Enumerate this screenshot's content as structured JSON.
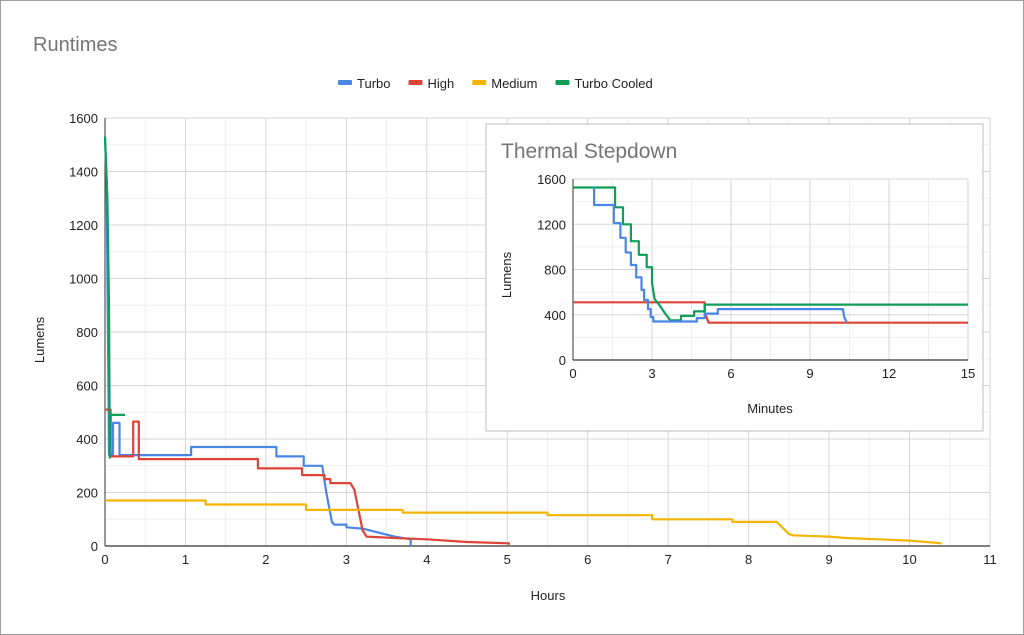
{
  "chart_data": [
    {
      "type": "line",
      "title": "Runtimes",
      "xlabel": "Hours",
      "ylabel": "Lumens",
      "xlim": [
        0,
        11
      ],
      "ylim": [
        0,
        1600
      ],
      "xticks": [
        0,
        1,
        2,
        3,
        4,
        5,
        6,
        7,
        8,
        9,
        10,
        11
      ],
      "yticks": [
        0,
        200,
        400,
        600,
        800,
        1000,
        1200,
        1400,
        1600
      ],
      "grid": true,
      "legend_position": "top",
      "series": [
        {
          "name": "Turbo",
          "color": "#4a86e8",
          "points": [
            [
              0,
              1530
            ],
            [
              0.02,
              1360
            ],
            [
              0.05,
              340
            ],
            [
              0.1,
              340
            ],
            [
              0.1,
              460
            ],
            [
              0.18,
              460
            ],
            [
              0.18,
              340
            ],
            [
              1.07,
              340
            ],
            [
              1.07,
              370
            ],
            [
              2.13,
              370
            ],
            [
              2.13,
              335
            ],
            [
              2.47,
              335
            ],
            [
              2.47,
              300
            ],
            [
              2.7,
              300
            ],
            [
              2.75,
              200
            ],
            [
              2.82,
              90
            ],
            [
              2.85,
              80
            ],
            [
              3.0,
              80
            ],
            [
              3.0,
              70
            ],
            [
              3.2,
              65
            ],
            [
              3.4,
              50
            ],
            [
              3.6,
              35
            ],
            [
              3.8,
              25
            ],
            [
              3.8,
              0
            ]
          ]
        },
        {
          "name": "High",
          "color": "#db4437",
          "points": [
            [
              0,
              510
            ],
            [
              0.07,
              510
            ],
            [
              0.07,
              335
            ],
            [
              0.35,
              335
            ],
            [
              0.35,
              465
            ],
            [
              0.42,
              465
            ],
            [
              0.42,
              325
            ],
            [
              1.9,
              325
            ],
            [
              1.9,
              290
            ],
            [
              2.45,
              290
            ],
            [
              2.45,
              265
            ],
            [
              2.73,
              265
            ],
            [
              2.73,
              250
            ],
            [
              2.8,
              250
            ],
            [
              2.8,
              235
            ],
            [
              3.05,
              235
            ],
            [
              3.1,
              210
            ],
            [
              3.2,
              60
            ],
            [
              3.25,
              35
            ],
            [
              3.6,
              30
            ],
            [
              4.0,
              25
            ],
            [
              4.5,
              15
            ],
            [
              5.02,
              10
            ],
            [
              5.02,
              5
            ]
          ]
        },
        {
          "name": "Medium",
          "color": "#f4b400",
          "points": [
            [
              0,
              170
            ],
            [
              1.25,
              170
            ],
            [
              1.25,
              155
            ],
            [
              2.5,
              155
            ],
            [
              2.5,
              135
            ],
            [
              3.7,
              135
            ],
            [
              3.7,
              125
            ],
            [
              5.5,
              125
            ],
            [
              5.5,
              115
            ],
            [
              6.8,
              115
            ],
            [
              6.8,
              100
            ],
            [
              7.8,
              100
            ],
            [
              7.8,
              90
            ],
            [
              8.35,
              90
            ],
            [
              8.4,
              75
            ],
            [
              8.5,
              45
            ],
            [
              8.55,
              40
            ],
            [
              9.0,
              35
            ],
            [
              9.2,
              30
            ],
            [
              9.6,
              25
            ],
            [
              10.0,
              20
            ],
            [
              10.4,
              10
            ]
          ]
        },
        {
          "name": "Turbo Cooled",
          "color": "#0f9d58",
          "points": [
            [
              0,
              1530
            ],
            [
              0.03,
              1300
            ],
            [
              0.05,
              900
            ],
            [
              0.06,
              330
            ],
            [
              0.07,
              490
            ],
            [
              0.25,
              490
            ]
          ]
        }
      ]
    },
    {
      "type": "line",
      "title": "Thermal Stepdown",
      "xlabel": "Minutes",
      "ylabel": "Lumens",
      "xlim": [
        0,
        15
      ],
      "ylim": [
        0,
        1600
      ],
      "xticks": [
        0,
        3,
        6,
        9,
        12,
        15
      ],
      "yticks": [
        0,
        400,
        800,
        1200,
        1600
      ],
      "grid": true,
      "series": [
        {
          "name": "High",
          "color": "#db4437",
          "points": [
            [
              0,
              510
            ],
            [
              5.0,
              510
            ],
            [
              5.0,
              420
            ],
            [
              5.15,
              330
            ],
            [
              15,
              330
            ]
          ]
        },
        {
          "name": "Turbo Cooled",
          "color": "#0f9d58",
          "points": [
            [
              0,
              1525
            ],
            [
              1.6,
              1525
            ],
            [
              1.6,
              1350
            ],
            [
              1.9,
              1350
            ],
            [
              1.9,
              1200
            ],
            [
              2.2,
              1200
            ],
            [
              2.2,
              1050
            ],
            [
              2.5,
              1050
            ],
            [
              2.5,
              930
            ],
            [
              2.8,
              930
            ],
            [
              2.8,
              820
            ],
            [
              3.0,
              820
            ],
            [
              3.0,
              680
            ],
            [
              3.1,
              540
            ],
            [
              3.3,
              480
            ],
            [
              3.5,
              410
            ],
            [
              3.7,
              350
            ],
            [
              4.1,
              350
            ],
            [
              4.1,
              390
            ],
            [
              4.6,
              390
            ],
            [
              4.6,
              430
            ],
            [
              5.0,
              430
            ],
            [
              5.0,
              490
            ],
            [
              15,
              490
            ]
          ]
        },
        {
          "name": "Turbo",
          "color": "#4a86e8",
          "points": [
            [
              0.8,
              1530
            ],
            [
              0.8,
              1370
            ],
            [
              1.55,
              1370
            ],
            [
              1.55,
              1210
            ],
            [
              1.8,
              1210
            ],
            [
              1.8,
              1080
            ],
            [
              2.0,
              1080
            ],
            [
              2.0,
              950
            ],
            [
              2.2,
              950
            ],
            [
              2.2,
              840
            ],
            [
              2.4,
              840
            ],
            [
              2.4,
              730
            ],
            [
              2.6,
              730
            ],
            [
              2.6,
              620
            ],
            [
              2.7,
              620
            ],
            [
              2.7,
              530
            ],
            [
              2.85,
              530
            ],
            [
              2.85,
              450
            ],
            [
              2.95,
              450
            ],
            [
              2.95,
              380
            ],
            [
              3.05,
              380
            ],
            [
              3.05,
              340
            ],
            [
              4.7,
              340
            ],
            [
              4.7,
              370
            ],
            [
              5.0,
              370
            ],
            [
              5.0,
              410
            ],
            [
              5.5,
              410
            ],
            [
              5.5,
              450
            ],
            [
              10.25,
              450
            ],
            [
              10.3,
              380
            ],
            [
              10.4,
              330
            ]
          ]
        }
      ]
    }
  ]
}
